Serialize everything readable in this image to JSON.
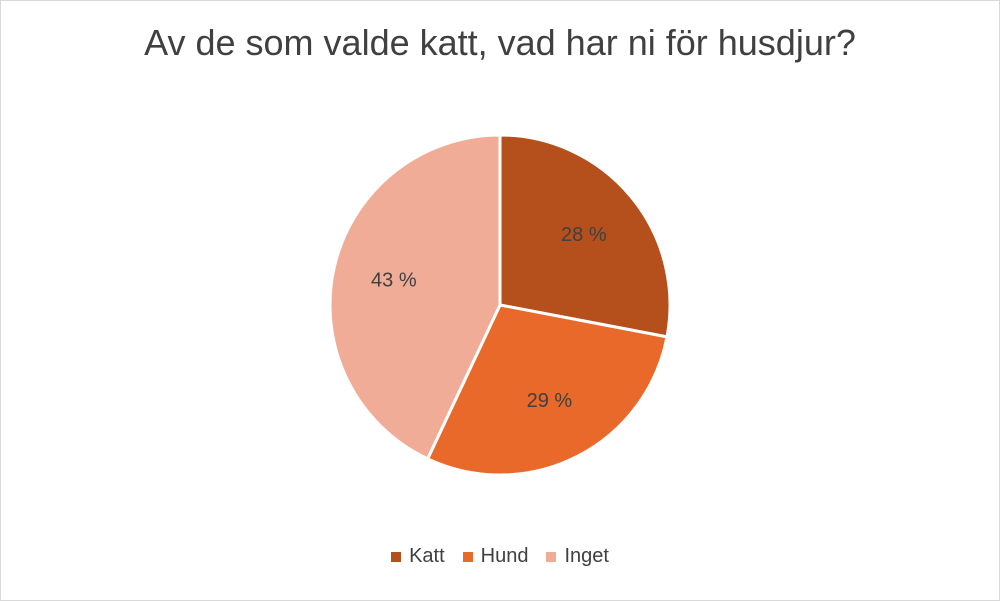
{
  "chart_data": {
    "type": "pie",
    "title": "Av de som valde katt, vad har ni för husdjur?",
    "slices": [
      {
        "label": "Katt",
        "value": 28,
        "display": "28 %",
        "color": "#B5501D"
      },
      {
        "label": "Hund",
        "value": 29,
        "display": "29 %",
        "color": "#E8692A"
      },
      {
        "label": "Inget",
        "value": 43,
        "display": "43 %",
        "color": "#F0AC96"
      }
    ],
    "legend_position": "bottom"
  }
}
